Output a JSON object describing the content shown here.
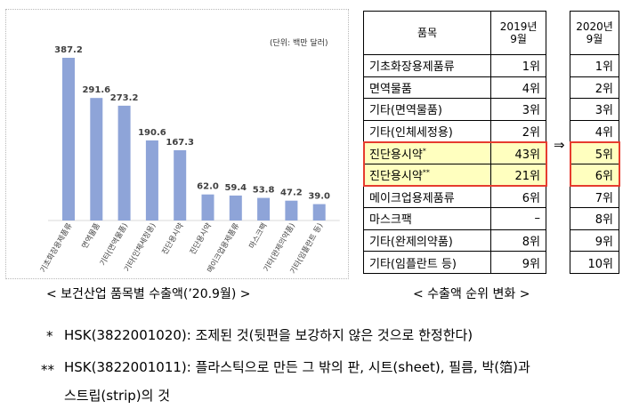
{
  "chart_data": {
    "type": "bar",
    "title": "",
    "unit_label": "(단위: 백만 달러)",
    "categories": [
      "기초화장용제품류",
      "면역물품",
      "기타(면역물품)",
      "기타(인체세정용)",
      "진단용시약",
      "진단용시약",
      "메이크업용제품류",
      "마스크팩",
      "기타(완제의약품)",
      "기타(임플란트 등)"
    ],
    "values": [
      387.2,
      291.6,
      273.2,
      190.6,
      167.3,
      62.0,
      59.4,
      53.8,
      47.2,
      39.0
    ],
    "value_labels": [
      "387.2",
      "291.6",
      "273.2",
      "190.6",
      "167.3",
      "62.0",
      "59.4",
      "53.8",
      "47.2",
      "39.0"
    ],
    "ylim": [
      0,
      420
    ],
    "grid": false,
    "bar_color": "#8ea4d8"
  },
  "captions": {
    "left": "< 보건산업 품목별 수출액(’20.9월) >",
    "right": "< 수출액 순위 변화 >"
  },
  "table": {
    "header_item": "품목",
    "header_2019_line1": "2019년",
    "header_2019_line2": "9월",
    "header_2020_line1": "2020년",
    "header_2020_line2": "9월",
    "rows": [
      {
        "item": "기초화장용제품류",
        "r2019": "1위",
        "r2020": "1위"
      },
      {
        "item": "면역물품",
        "r2019": "4위",
        "r2020": "2위"
      },
      {
        "item": "기타(면역물품)",
        "r2019": "3위",
        "r2020": "3위"
      },
      {
        "item": "기타(인체세정용)",
        "r2019": "2위",
        "r2020": "4위"
      },
      {
        "item": "진단용시약",
        "sup": "*",
        "r2019": "43위",
        "r2020": "5위"
      },
      {
        "item": "진단용시약",
        "sup": "**",
        "r2019": "21위",
        "r2020": "6위"
      },
      {
        "item": "메이크업용제품류",
        "r2019": "6위",
        "r2020": "7위"
      },
      {
        "item": "마스크팩",
        "r2019": "–",
        "r2020": "8위"
      },
      {
        "item": "기타(완제의약품)",
        "r2019": "8위",
        "r2020": "9위"
      },
      {
        "item": "기타(임플란트 등)",
        "r2019": "9위",
        "r2020": "10위"
      }
    ],
    "arrow": "⇒",
    "highlight_color": "#e63c2f"
  },
  "notes": {
    "note1_mark": "*",
    "note1": "HSK(3822001020): 조제된 것(뒷편을 보강하지 않은 것으로 한정한다)",
    "note2_mark": "**",
    "note2": "HSK(3822001011): 플라스틱으로 만든 그 밖의 판, 시트(sheet), 필름, 박(箔)과",
    "note2_cont": "스트립(strip)의 것"
  }
}
